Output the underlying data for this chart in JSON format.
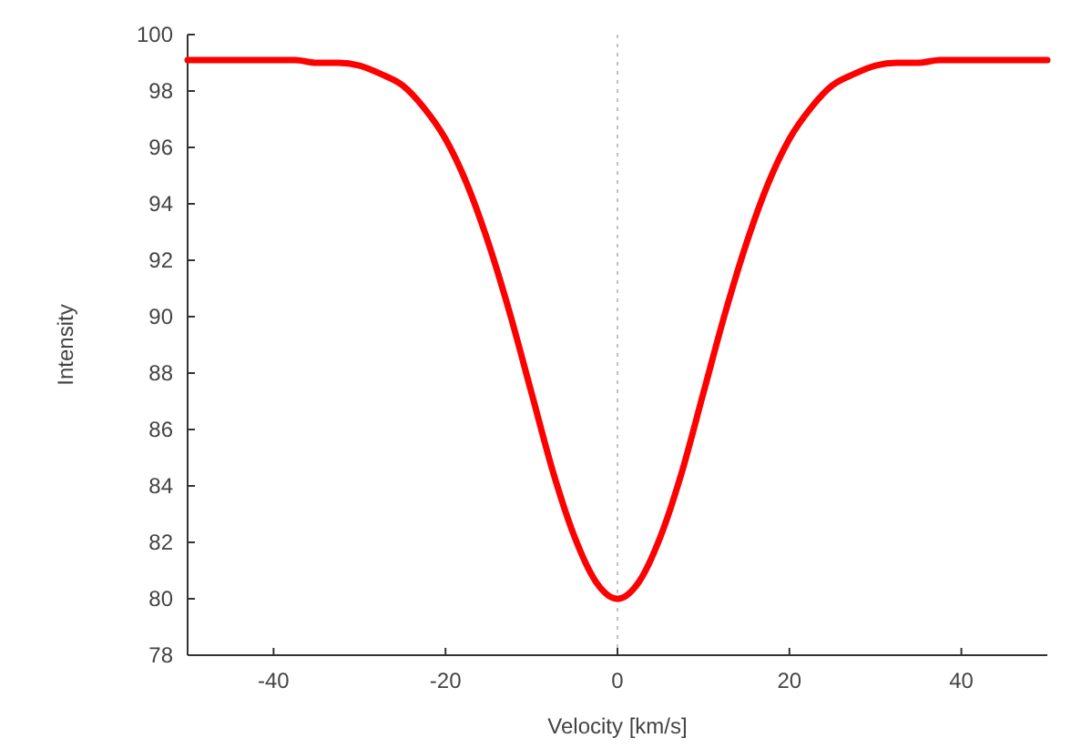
{
  "chart_data": {
    "type": "line",
    "xlabel": "Velocity [km/s]",
    "ylabel": "Intensity",
    "x": [
      -50,
      -47.5,
      -45,
      -42.5,
      -40,
      -37.5,
      -35,
      -32.5,
      -30,
      -27.5,
      -25,
      -22.5,
      -20,
      -17.5,
      -15,
      -12.5,
      -10,
      -7.5,
      -5,
      -2.5,
      0,
      2.5,
      5,
      7.5,
      10,
      12.5,
      15,
      17.5,
      20,
      22.5,
      25,
      27.5,
      30,
      32.5,
      35,
      37.5,
      40,
      42.5,
      45,
      47.5,
      50
    ],
    "series": [
      {
        "color": "#ff0000",
        "values": [
          99.1,
          99.1,
          99.1,
          99.1,
          99.1,
          99.1,
          99.0,
          99.0,
          98.9,
          98.6,
          98.2,
          97.4,
          96.3,
          94.7,
          92.6,
          90.1,
          87.3,
          84.5,
          82.2,
          80.6,
          80.0,
          80.6,
          82.2,
          84.5,
          87.3,
          90.1,
          92.6,
          94.7,
          96.3,
          97.4,
          98.2,
          98.6,
          98.9,
          99.0,
          99.0,
          99.1,
          99.1,
          99.1,
          99.1,
          99.1,
          99.1
        ]
      }
    ],
    "xlim": [
      -50,
      50
    ],
    "xticks": [
      -40,
      -20,
      0,
      20,
      40
    ],
    "ylim": [
      78,
      100
    ],
    "yticks": [
      78,
      80,
      82,
      84,
      86,
      88,
      90,
      92,
      94,
      96,
      98,
      100
    ],
    "ref_lines": [
      {
        "axis": "x",
        "value": 0,
        "color": "#c0c0c0",
        "line_style": "dotted"
      }
    ],
    "grid": false,
    "marker": "none",
    "line_style": "solid"
  }
}
